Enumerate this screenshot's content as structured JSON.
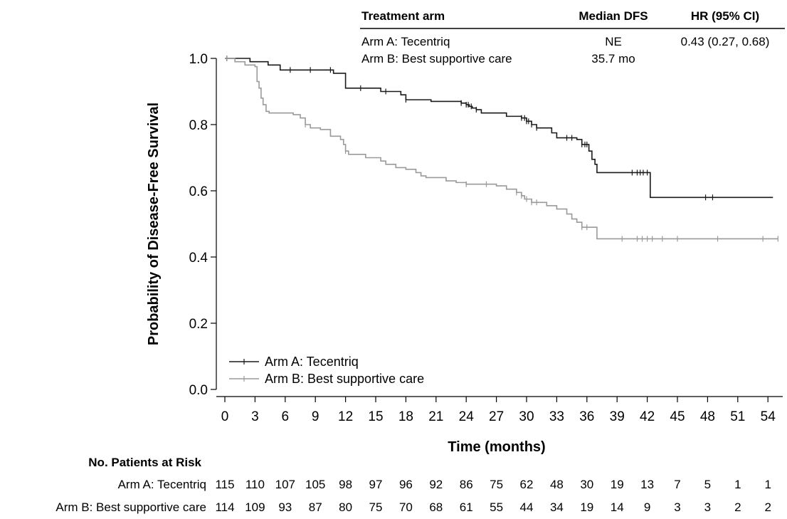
{
  "summary_table": {
    "headers": [
      "Treatment arm",
      "Median DFS",
      "HR (95% CI)"
    ],
    "rows": [
      [
        "Arm A: Tecentriq",
        "NE",
        "0.43 (0.27, 0.68)"
      ],
      [
        "Arm B: Best supportive care",
        "35.7 mo",
        ""
      ]
    ]
  },
  "chart_data": {
    "type": "line",
    "title": "",
    "xlabel": "Time (months)",
    "ylabel": "Probability of Disease-Free Survival",
    "xlim": [
      0,
      55
    ],
    "ylim": [
      0,
      1
    ],
    "x_ticks": [
      0,
      3,
      6,
      9,
      12,
      15,
      18,
      21,
      24,
      27,
      30,
      33,
      36,
      39,
      42,
      45,
      48,
      51,
      54
    ],
    "y_ticks": [
      0.0,
      0.2,
      0.4,
      0.6,
      0.8,
      1.0
    ],
    "y_tick_labels": [
      "0.0",
      "0.2",
      "0.4",
      "0.6",
      "0.8",
      "1.0"
    ],
    "grid": false,
    "legend_position": "bottom-left",
    "series": [
      {
        "name": "Arm A: Tecentriq",
        "color": "#1a1a1a",
        "step_points": [
          [
            0,
            1.0
          ],
          [
            2.5,
            0.99
          ],
          [
            4.3,
            0.98
          ],
          [
            5.5,
            0.965
          ],
          [
            10.8,
            0.955
          ],
          [
            12,
            0.91
          ],
          [
            14,
            0.91
          ],
          [
            15.5,
            0.9
          ],
          [
            17.5,
            0.89
          ],
          [
            18,
            0.875
          ],
          [
            19.5,
            0.875
          ],
          [
            20.5,
            0.87
          ],
          [
            23.5,
            0.865
          ],
          [
            24,
            0.86
          ],
          [
            24.3,
            0.855
          ],
          [
            24.6,
            0.85
          ],
          [
            25,
            0.845
          ],
          [
            25.5,
            0.835
          ],
          [
            28,
            0.825
          ],
          [
            29.5,
            0.82
          ],
          [
            30,
            0.81
          ],
          [
            30.5,
            0.8
          ],
          [
            31,
            0.79
          ],
          [
            32.5,
            0.775
          ],
          [
            33,
            0.76
          ],
          [
            35,
            0.755
          ],
          [
            35.5,
            0.74
          ],
          [
            36.2,
            0.72
          ],
          [
            36.5,
            0.695
          ],
          [
            36.8,
            0.68
          ],
          [
            37,
            0.655
          ],
          [
            42,
            0.655
          ],
          [
            42.3,
            0.58
          ],
          [
            54.5,
            0.58
          ]
        ],
        "censor_x": [
          0.2,
          6.5,
          8.5,
          10.5,
          13.5,
          16,
          18,
          23.5,
          24,
          24.2,
          24.5,
          25,
          29.5,
          29.8,
          30,
          30.2,
          30.5,
          31,
          34,
          34.5,
          35.5,
          35.8,
          36,
          40.5,
          41,
          41.3,
          41.6,
          42,
          47.8,
          48.5
        ]
      },
      {
        "name": "Arm B: Best supportive care",
        "color": "#9a9a9a",
        "step_points": [
          [
            0,
            1.0
          ],
          [
            1,
            0.99
          ],
          [
            2,
            0.98
          ],
          [
            3,
            0.975
          ],
          [
            3.2,
            0.93
          ],
          [
            3.4,
            0.91
          ],
          [
            3.6,
            0.88
          ],
          [
            3.8,
            0.86
          ],
          [
            4.1,
            0.84
          ],
          [
            4.4,
            0.835
          ],
          [
            6.8,
            0.83
          ],
          [
            7.5,
            0.82
          ],
          [
            8,
            0.8
          ],
          [
            8.5,
            0.79
          ],
          [
            9.5,
            0.785
          ],
          [
            10.5,
            0.765
          ],
          [
            11.5,
            0.755
          ],
          [
            11.8,
            0.74
          ],
          [
            12,
            0.72
          ],
          [
            12.3,
            0.71
          ],
          [
            14,
            0.7
          ],
          [
            15.5,
            0.69
          ],
          [
            16,
            0.68
          ],
          [
            17,
            0.67
          ],
          [
            18,
            0.665
          ],
          [
            19,
            0.655
          ],
          [
            19.5,
            0.645
          ],
          [
            20,
            0.64
          ],
          [
            22,
            0.63
          ],
          [
            23,
            0.625
          ],
          [
            24,
            0.62
          ],
          [
            27,
            0.615
          ],
          [
            28,
            0.605
          ],
          [
            29,
            0.595
          ],
          [
            29.5,
            0.585
          ],
          [
            29.8,
            0.575
          ],
          [
            30.5,
            0.565
          ],
          [
            32,
            0.555
          ],
          [
            33,
            0.545
          ],
          [
            34,
            0.53
          ],
          [
            34.5,
            0.515
          ],
          [
            35,
            0.505
          ],
          [
            35.5,
            0.49
          ],
          [
            37,
            0.455
          ],
          [
            55,
            0.455
          ]
        ],
        "censor_x": [
          0.2,
          8,
          12,
          24,
          26,
          29,
          29.5,
          30,
          30.5,
          31,
          35.5,
          36,
          39.5,
          41,
          41.5,
          42,
          42.5,
          43.5,
          45,
          49,
          53.5,
          55
        ]
      }
    ]
  },
  "risk_table": {
    "title": "No. Patients at Risk",
    "rows": [
      {
        "label": "Arm A: Tecentriq",
        "values": [
          "115",
          "110",
          "107",
          "105",
          "98",
          "97",
          "96",
          "92",
          "86",
          "75",
          "62",
          "48",
          "30",
          "19",
          "13",
          "7",
          "5",
          "1",
          "1"
        ]
      },
      {
        "label": "Arm B: Best supportive care",
        "values": [
          "114",
          "109",
          "93",
          "87",
          "80",
          "75",
          "70",
          "68",
          "61",
          "55",
          "44",
          "34",
          "19",
          "14",
          "9",
          "3",
          "3",
          "2",
          "2"
        ]
      }
    ]
  }
}
